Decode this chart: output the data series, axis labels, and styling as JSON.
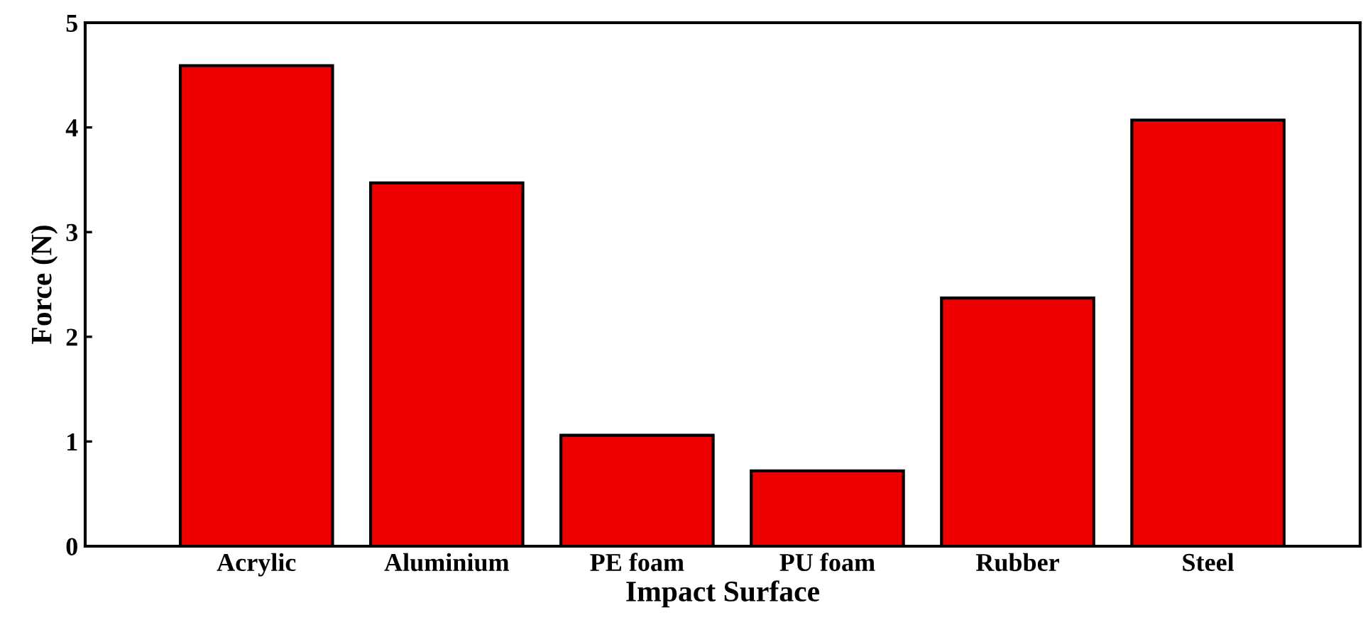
{
  "chart_data": {
    "type": "bar",
    "xlabel": "Impact Surface",
    "ylabel": "Force (N)",
    "categories": [
      "Acrylic",
      "Aluminium",
      "PE foam",
      "PU foam",
      "Rubber",
      "Steel"
    ],
    "values": [
      4.59,
      3.47,
      1.06,
      0.72,
      2.37,
      4.07
    ],
    "color": "#ee0000",
    "ylim": [
      0,
      5
    ],
    "yticks": [
      0,
      1,
      2,
      3,
      4,
      5
    ],
    "grid": false,
    "legend": false
  }
}
